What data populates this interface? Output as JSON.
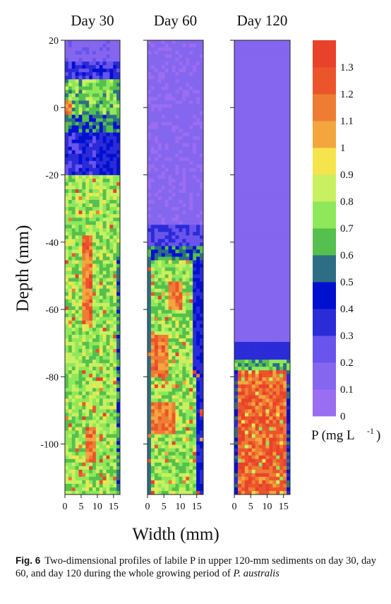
{
  "chart_data": {
    "type": "heatmap",
    "panels": [
      {
        "title": "Day 30",
        "surface_depth": 20
      },
      {
        "title": "Day 60",
        "surface_depth": -35
      },
      {
        "title": "Day 120",
        "surface_depth": -70
      }
    ],
    "xlabel": "Width (mm)",
    "ylabel": "Depth (mm)",
    "xlim": [
      0,
      17
    ],
    "ylim": [
      -115,
      20
    ],
    "x_ticks": [
      "0",
      "5",
      "10",
      "15"
    ],
    "y_ticks": [
      "20",
      "0",
      "-20",
      "-40",
      "-60",
      "-80",
      "-100"
    ],
    "colorbar": {
      "label": "P (mg L",
      "label_superscript": "-1",
      "label_close": ")",
      "ticks": [
        "0",
        "0.1",
        "0.2",
        "0.3",
        "0.4",
        "0.5",
        "0.6",
        "0.7",
        "0.8",
        "0.9",
        "1",
        "1.1",
        "1.2",
        "1.3"
      ],
      "min": 0,
      "max": 1.4,
      "colors": [
        "#9a6df2",
        "#8566ee",
        "#6a54ee",
        "#2b2bd8",
        "#0010d0",
        "#2e6e85",
        "#55c04d",
        "#8ee85a",
        "#c8f060",
        "#f6e44c",
        "#f4a53e",
        "#ee7d33",
        "#ec552c",
        "#e8422a"
      ]
    }
  },
  "caption": {
    "label": "Fig. 6",
    "text": "Two-dimensional profiles of labile P in upper 120-mm sediments on day 30, day 60, and day 120 during the whole growing period of",
    "species": "P. australis"
  }
}
